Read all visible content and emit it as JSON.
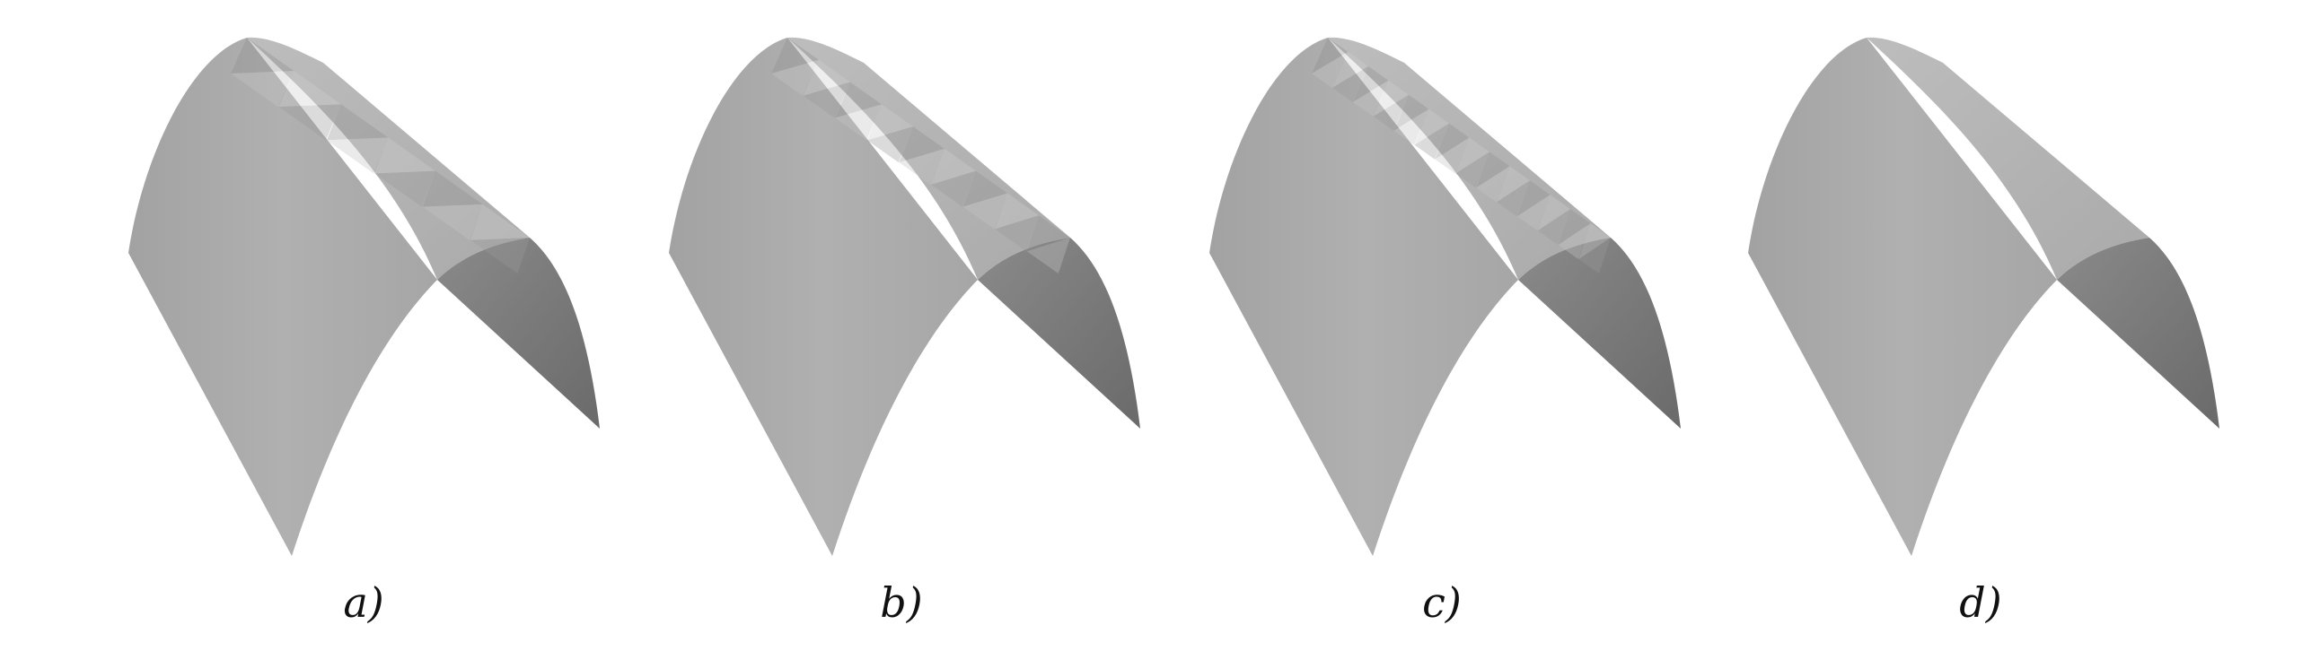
{
  "figure": {
    "panels": [
      {
        "label": "a)",
        "mesh_density": "coarse"
      },
      {
        "label": "b)",
        "mesh_density": "medium"
      },
      {
        "label": "c)",
        "mesh_density": "fine"
      },
      {
        "label": "d)",
        "mesh_density": "very fine"
      }
    ],
    "surface_color": "#a9a9a9",
    "shadow_color": "#707070",
    "highlight_color": "#c4c4c4",
    "background": "#ffffff"
  }
}
